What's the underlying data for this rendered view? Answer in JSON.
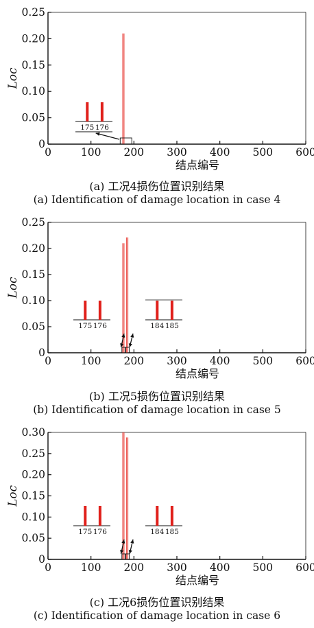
{
  "chart_data": [
    {
      "type": "bar",
      "ylabel": "Loc",
      "xlabel": "结点编号",
      "caption_cn": "(a) 工况4损伤位置识别结果",
      "caption_en": "(a) Identification of damage location in case 4",
      "xlim": [
        0,
        600
      ],
      "ylim": [
        0,
        0.25
      ],
      "xticks": [
        "0",
        "100",
        "200",
        "300",
        "400",
        "500",
        "600"
      ],
      "yticks": [
        "0",
        "0.05",
        "0.10",
        "0.15",
        "0.20",
        "0.25"
      ],
      "bars": [
        {
          "x": 175,
          "y": 0.21
        },
        {
          "x": 176,
          "y": 0.21
        }
      ],
      "insets": [
        {
          "labels": [
            "175",
            "176"
          ],
          "side": "left"
        }
      ]
    },
    {
      "type": "bar",
      "ylabel": "Loc",
      "xlabel": "结点编号",
      "caption_cn": "(b) 工况5损伤位置识别结果",
      "caption_en": "(b) Identification of damage location in case 5",
      "xlim": [
        0,
        600
      ],
      "ylim": [
        0,
        0.25
      ],
      "xticks": [
        "0",
        "100",
        "200",
        "300",
        "400",
        "500",
        "600"
      ],
      "yticks": [
        "0",
        "0.05",
        "0.10",
        "0.15",
        "0.20",
        "0.25"
      ],
      "bars": [
        {
          "x": 175,
          "y": 0.21
        },
        {
          "x": 176,
          "y": 0.21
        },
        {
          "x": 184,
          "y": 0.221
        },
        {
          "x": 185,
          "y": 0.221
        }
      ],
      "insets": [
        {
          "labels": [
            "175",
            "176"
          ],
          "side": "left"
        },
        {
          "labels": [
            "184",
            "185"
          ],
          "side": "right"
        }
      ]
    },
    {
      "type": "bar",
      "ylabel": "Loc",
      "xlabel": "结点编号",
      "caption_cn": "(c) 工况6损伤位置识别结果",
      "caption_en": "(c) Identification of damage location in case 6",
      "xlim": [
        0,
        600
      ],
      "ylim": [
        0,
        0.3
      ],
      "xticks": [
        "0",
        "100",
        "200",
        "300",
        "400",
        "500",
        "600"
      ],
      "yticks": [
        "0",
        "0.05",
        "0.10",
        "0.15",
        "0.20",
        "0.25",
        "0.30"
      ],
      "bars": [
        {
          "x": 175,
          "y": 0.3
        },
        {
          "x": 176,
          "y": 0.3
        },
        {
          "x": 184,
          "y": 0.288
        },
        {
          "x": 185,
          "y": 0.288
        }
      ],
      "insets": [
        {
          "labels": [
            "175",
            "176"
          ],
          "side": "left"
        },
        {
          "labels": [
            "184",
            "185"
          ],
          "side": "right"
        }
      ]
    }
  ],
  "colors": {
    "bar": "#e8413a",
    "inset_bar": "#e0201b",
    "axis": "#111111"
  }
}
